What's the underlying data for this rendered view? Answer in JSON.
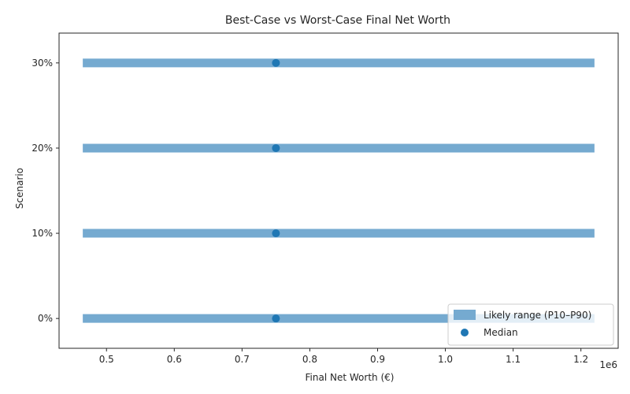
{
  "chart_data": {
    "type": "range",
    "title": "Best-Case vs Worst-Case Final Net Worth",
    "xlabel": "Final Net Worth (€)",
    "ylabel": "Scenario",
    "x_offset_label": "1e6",
    "xlim": [
      430000,
      1255000
    ],
    "x_ticks": [
      500000,
      600000,
      700000,
      800000,
      900000,
      1000000,
      1100000,
      1200000
    ],
    "x_tick_labels": [
      "0.5",
      "0.6",
      "0.7",
      "0.8",
      "0.9",
      "1.0",
      "1.1",
      "1.2"
    ],
    "categories": [
      "0%",
      "10%",
      "20%",
      "30%"
    ],
    "series": [
      {
        "name": "Likely range (P10–P90)",
        "kind": "range",
        "low": [
          465000,
          465000,
          465000,
          465000
        ],
        "high": [
          1220000,
          1220000,
          1220000,
          1220000
        ],
        "color": "#75aad0"
      },
      {
        "name": "Median",
        "kind": "point",
        "values": [
          750000,
          750000,
          750000,
          750000
        ],
        "color": "#1f77b4"
      }
    ],
    "legend_position": "bottom-right",
    "grid": false
  }
}
